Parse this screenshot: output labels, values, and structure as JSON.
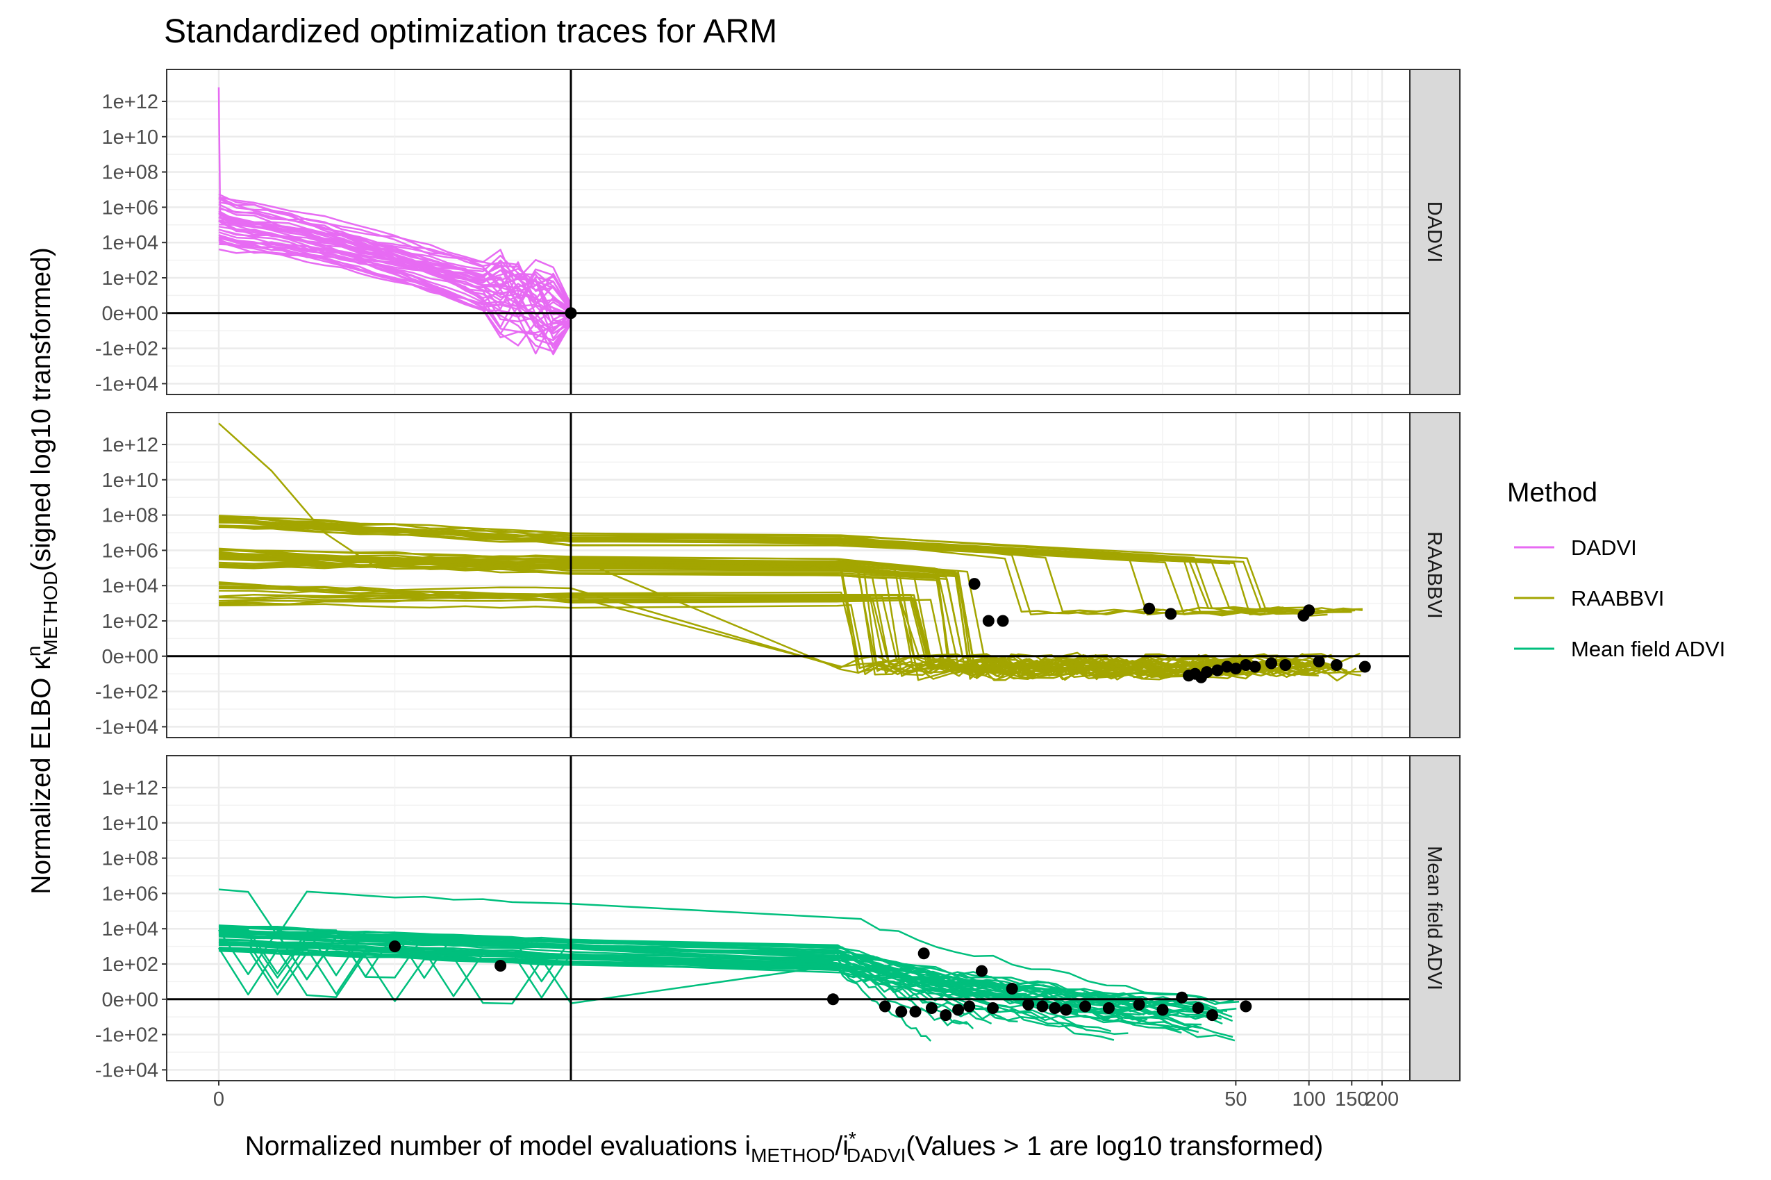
{
  "chart_data": {
    "type": "line",
    "title": "Standardized optimization traces for ARM",
    "xlabel": {
      "main": "Normalized number of model evaluations i",
      "sub1": "METHOD",
      "mid": "/i",
      "sup2": "*",
      "sub2": "DADVI",
      "tail": "(Values > 1 are log10 transformed)"
    },
    "ylabel": {
      "main": "Normalized ELBO κ",
      "sup": "n",
      "sub": "METHOD",
      "tail": "(signed log10 transformed)"
    },
    "x_ticks": [
      "0",
      "50",
      "100",
      "150",
      "200"
    ],
    "y_ticks": [
      "1e+12",
      "1e+10",
      "1e+08",
      "1e+06",
      "1e+04",
      "1e+02",
      "0e+00",
      "-1e+02",
      "-1e+04"
    ],
    "reference_lines": {
      "x": 1,
      "y": 0
    },
    "facets": [
      "DADVI",
      "RAABBVI",
      "Mean field ADVI"
    ],
    "legend": {
      "title": "Method",
      "position": "right",
      "entries": [
        {
          "name": "DADVI",
          "color": "#E76BF3"
        },
        {
          "name": "RAABBVI",
          "color": "#A3A500"
        },
        {
          "name": "Mean field ADVI",
          "color": "#00BF7D"
        }
      ]
    },
    "grid": true,
    "end_points": {
      "DADVI": [
        [
          1,
          0
        ]
      ],
      "RAABBVI": [
        [
          4.2,
          4.1
        ],
        [
          4.8,
          2.0
        ],
        [
          5.5,
          2.0
        ],
        [
          22,
          2.7
        ],
        [
          27,
          2.4
        ],
        [
          32,
          -1.1
        ],
        [
          34,
          -1.0
        ],
        [
          36,
          -1.2
        ],
        [
          38,
          -0.9
        ],
        [
          42,
          -0.8
        ],
        [
          46,
          -0.6
        ],
        [
          50,
          -0.7
        ],
        [
          55,
          -0.5
        ],
        [
          60,
          -0.6
        ],
        [
          70,
          -0.4
        ],
        [
          80,
          -0.5
        ],
        [
          95,
          2.3
        ],
        [
          100,
          2.6
        ],
        [
          110,
          -0.3
        ],
        [
          130,
          -0.5
        ],
        [
          170,
          -0.6
        ]
      ],
      "Mean field ADVI": [
        [
          0.5,
          3.0
        ],
        [
          0.8,
          1.9
        ],
        [
          1.1,
          0
        ],
        [
          1.8,
          -0.4
        ],
        [
          2.1,
          -0.7
        ],
        [
          2.4,
          -0.7
        ],
        [
          2.6,
          2.6
        ],
        [
          2.8,
          -0.5
        ],
        [
          3.2,
          -0.9
        ],
        [
          3.6,
          -0.6
        ],
        [
          4.0,
          -0.4
        ],
        [
          4.5,
          1.6
        ],
        [
          5.0,
          -0.5
        ],
        [
          6.0,
          0.6
        ],
        [
          7.0,
          -0.3
        ],
        [
          8.0,
          -0.4
        ],
        [
          9.0,
          -0.5
        ],
        [
          10.0,
          -0.6
        ],
        [
          12.0,
          -0.4
        ],
        [
          15.0,
          -0.5
        ],
        [
          20.0,
          -0.3
        ],
        [
          25.0,
          -0.6
        ],
        [
          30.0,
          0.1
        ],
        [
          35.0,
          -0.5
        ],
        [
          40.0,
          -0.9
        ],
        [
          55.0,
          -0.4
        ]
      ]
    }
  }
}
